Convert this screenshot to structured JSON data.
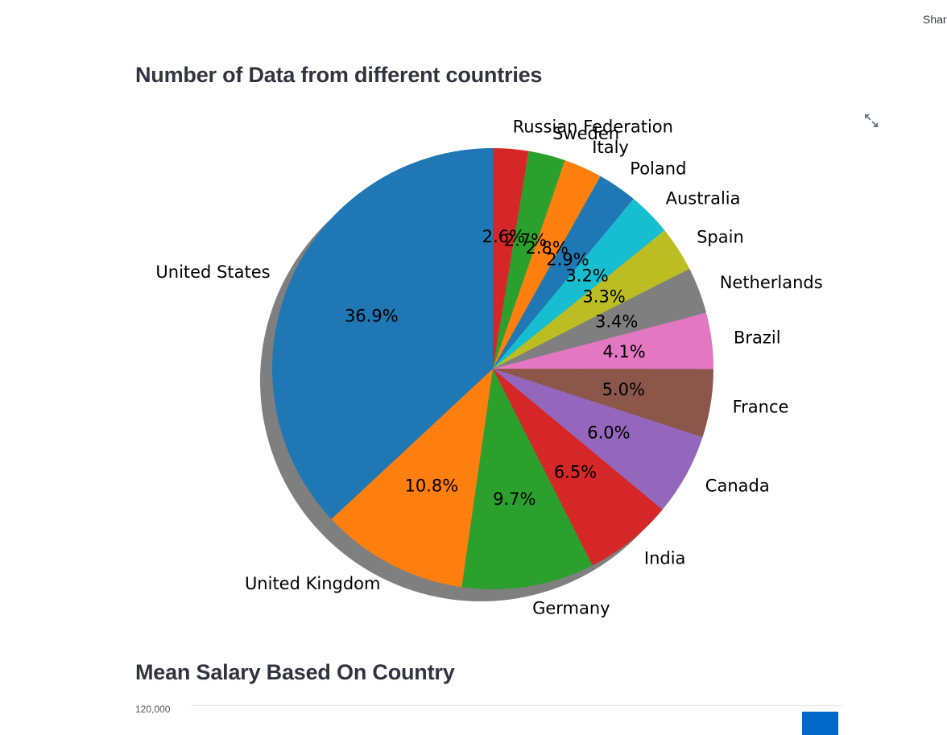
{
  "header": {
    "share_label": "Share"
  },
  "pie_section": {
    "title": "Number of Data from different countries"
  },
  "bar_section": {
    "title": "Mean Salary Based On Country",
    "ytick_top": "120,000",
    "bar_color": "#0068c9"
  },
  "chart_data": [
    {
      "type": "pie",
      "title": "Number of Data from different countries",
      "shadow": true,
      "labels": [
        "Russian Federation",
        "Sweden",
        "Italy",
        "Poland",
        "Australia",
        "Spain",
        "Netherlands",
        "Brazil",
        "France",
        "Canada",
        "India",
        "Germany",
        "United Kingdom",
        "United States"
      ],
      "values": [
        2.6,
        2.7,
        2.8,
        2.9,
        3.2,
        3.3,
        3.4,
        4.1,
        5.0,
        6.0,
        6.5,
        9.7,
        10.8,
        36.9
      ],
      "value_labels": [
        "2.6%",
        "2.7%",
        "2.8%",
        "2.9%",
        "3.2%",
        "3.3%",
        "3.4%",
        "4.1%",
        "5.0%",
        "6.0%",
        "6.5%",
        "9.7%",
        "10.8%",
        "36.9%"
      ],
      "colors": [
        "#d62728",
        "#2ca02c",
        "#ff7f0e",
        "#1f77b4",
        "#17becf",
        "#bcbd22",
        "#7f7f7f",
        "#e377c2",
        "#8c564b",
        "#9467bd",
        "#d62728",
        "#2ca02c",
        "#ff7f0e",
        "#1f77b4"
      ],
      "start_angle": "top",
      "direction": "clockwise"
    },
    {
      "type": "bar",
      "title": "Mean Salary Based On Country",
      "yticks": [
        "120,000"
      ]
    }
  ]
}
